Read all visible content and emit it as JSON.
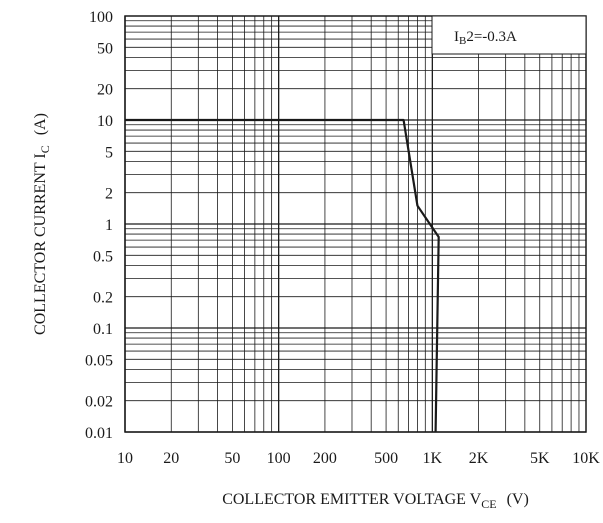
{
  "chart_data": {
    "type": "line",
    "xscale": "log",
    "yscale": "log",
    "xlim": [
      10,
      10000
    ],
    "ylim": [
      0.01,
      100
    ],
    "grid": true,
    "legend_position": "top-right",
    "xlabel": {
      "main": "COLLECTOR EMITTER VOLTAGE V",
      "sub": "CE",
      "unit": "(V)"
    },
    "ylabel": {
      "main": "COLLECTOR CURRENT I",
      "sub": "C",
      "unit": "(A)"
    },
    "x_ticks": [
      {
        "value": 10,
        "label": "10"
      },
      {
        "value": 20,
        "label": "20"
      },
      {
        "value": 50,
        "label": "50"
      },
      {
        "value": 100,
        "label": "100"
      },
      {
        "value": 200,
        "label": "200"
      },
      {
        "value": 500,
        "label": "500"
      },
      {
        "value": 1000,
        "label": "1K"
      },
      {
        "value": 2000,
        "label": "2K"
      },
      {
        "value": 5000,
        "label": "5K"
      },
      {
        "value": 10000,
        "label": "10K"
      }
    ],
    "y_ticks": [
      {
        "value": 100,
        "label": "100"
      },
      {
        "value": 50,
        "label": "50"
      },
      {
        "value": 20,
        "label": "20"
      },
      {
        "value": 10,
        "label": "10"
      },
      {
        "value": 5,
        "label": "5"
      },
      {
        "value": 2,
        "label": "2"
      },
      {
        "value": 1,
        "label": "1"
      },
      {
        "value": 0.5,
        "label": "0.5"
      },
      {
        "value": 0.2,
        "label": "0.2"
      },
      {
        "value": 0.1,
        "label": "0.1"
      },
      {
        "value": 0.05,
        "label": "0.05"
      },
      {
        "value": 0.02,
        "label": "0.02"
      },
      {
        "value": 0.01,
        "label": "0.01"
      }
    ],
    "legend": {
      "main": "I",
      "sub": "B",
      "rest": "2=-0.3A"
    },
    "series": [
      {
        "color": "#1a1a1a",
        "x": [
          10,
          650,
          800,
          1100,
          1050
        ],
        "y": [
          10,
          10,
          1.5,
          0.75,
          0.01
        ]
      }
    ]
  }
}
